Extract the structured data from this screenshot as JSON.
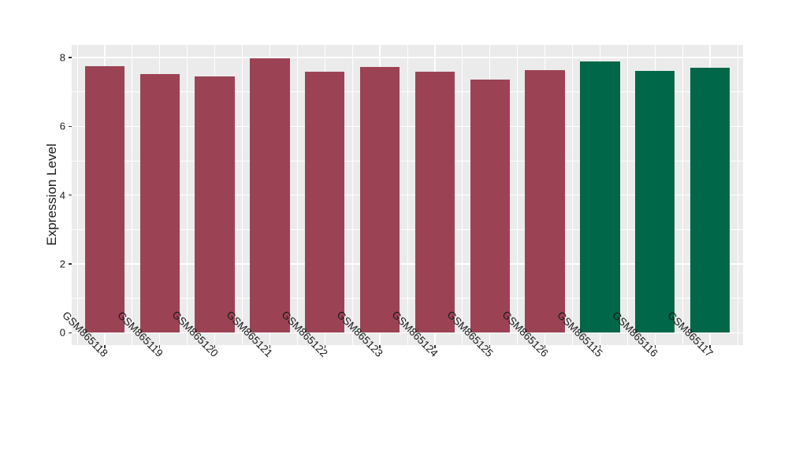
{
  "chart_data": {
    "type": "bar",
    "title": "",
    "xlabel": "",
    "ylabel": "Expression Level",
    "categories": [
      "GSM865118",
      "GSM865119",
      "GSM865120",
      "GSM865121",
      "GSM865122",
      "GSM865123",
      "GSM865124",
      "GSM865125",
      "GSM865126",
      "GSM865115",
      "GSM865116",
      "GSM865117"
    ],
    "values": [
      7.74,
      7.52,
      7.45,
      7.99,
      7.6,
      7.72,
      7.58,
      7.37,
      7.63,
      7.89,
      7.62,
      7.7
    ],
    "bar_colors": [
      "#9B4354",
      "#9B4354",
      "#9B4354",
      "#9B4354",
      "#9B4354",
      "#9B4354",
      "#9B4354",
      "#9B4354",
      "#9B4354",
      "#006748",
      "#006748",
      "#006748"
    ],
    "yticks": [
      0,
      2,
      4,
      6,
      8
    ],
    "minor_yticks": [
      1,
      3,
      5,
      7
    ],
    "ylim": [
      -0.36,
      8.37
    ],
    "grid": true,
    "legend": "none",
    "colors": {
      "maroon_group": "#9B4354",
      "green_group": "#006748",
      "panel_background": "#EBEBEB",
      "gridline": "#FFFFFF",
      "axis_text": "#1A1A1A",
      "tick_mark": "#333333"
    }
  }
}
